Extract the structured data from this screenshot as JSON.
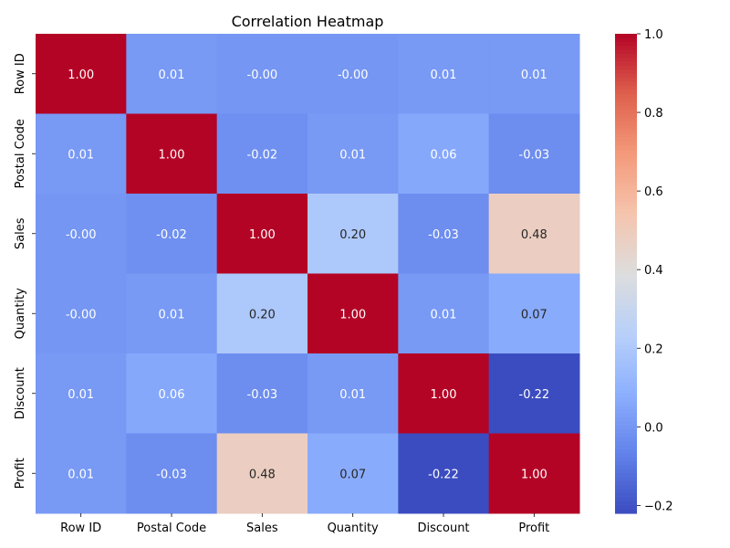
{
  "chart_data": {
    "type": "heatmap",
    "title": "Correlation Heatmap",
    "xlabel": "",
    "ylabel": "",
    "categories_x": [
      "Row ID",
      "Postal Code",
      "Sales",
      "Quantity",
      "Discount",
      "Profit"
    ],
    "categories_y": [
      "Row ID",
      "Postal Code",
      "Sales",
      "Quantity",
      "Discount",
      "Profit"
    ],
    "values": [
      [
        1.0,
        0.01,
        -0.0,
        -0.0,
        0.01,
        0.01
      ],
      [
        0.01,
        1.0,
        -0.02,
        0.01,
        0.06,
        -0.03
      ],
      [
        -0.0,
        -0.02,
        1.0,
        0.2,
        -0.03,
        0.48
      ],
      [
        -0.0,
        0.01,
        0.2,
        1.0,
        0.01,
        0.07
      ],
      [
        0.01,
        0.06,
        -0.03,
        0.01,
        1.0,
        -0.22
      ],
      [
        0.01,
        -0.03,
        0.48,
        0.07,
        -0.22,
        1.0
      ]
    ],
    "labels": [
      [
        "1.00",
        "0.01",
        "-0.00",
        "-0.00",
        "0.01",
        "0.01"
      ],
      [
        "0.01",
        "1.00",
        "-0.02",
        "0.01",
        "0.06",
        "-0.03"
      ],
      [
        "-0.00",
        "-0.02",
        "1.00",
        "0.20",
        "-0.03",
        "0.48"
      ],
      [
        "-0.00",
        "0.01",
        "0.20",
        "1.00",
        "0.01",
        "0.07"
      ],
      [
        "0.01",
        "0.06",
        "-0.03",
        "0.01",
        "1.00",
        "-0.22"
      ],
      [
        "0.01",
        "-0.03",
        "0.48",
        "0.07",
        "-0.22",
        "1.00"
      ]
    ],
    "colorscale": "coolwarm",
    "vmin": -0.22,
    "vmax": 1.0,
    "colorbar_ticks": [
      -0.2,
      0.0,
      0.2,
      0.4,
      0.6,
      0.8,
      1.0
    ],
    "colorbar_tick_labels": [
      "−0.2",
      "0.0",
      "0.2",
      "0.4",
      "0.6",
      "0.8",
      "1.0"
    ],
    "grid": false,
    "legend": "colorbar-right"
  }
}
